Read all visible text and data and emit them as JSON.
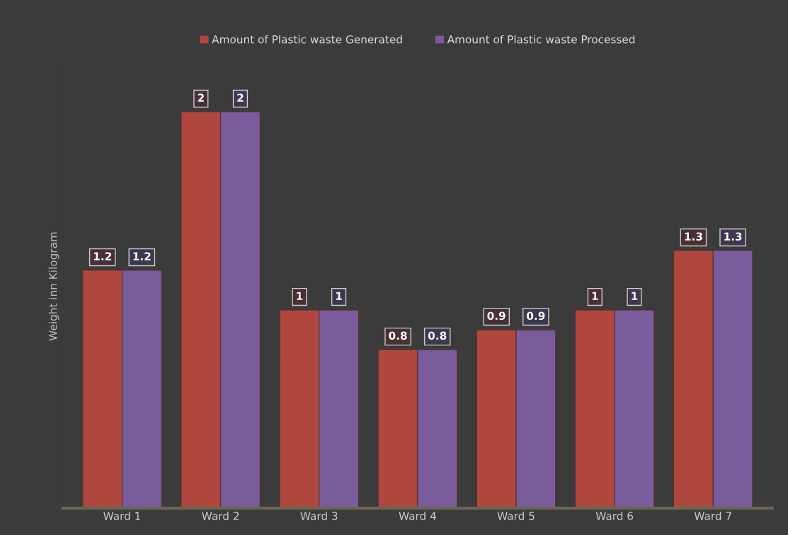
{
  "chart_data": {
    "type": "bar",
    "ylabel": "Weight inn Kilogram",
    "categories": [
      "Ward 1",
      "Ward 2",
      "Ward 3",
      "Ward 4",
      "Ward 5",
      "Ward 6",
      "Ward 7"
    ],
    "series": [
      {
        "name": "Amount of Plastic waste Generated",
        "color": "#b0473f",
        "values": [
          1.2,
          2,
          1,
          0.8,
          0.9,
          1,
          1.3
        ]
      },
      {
        "name": "Amount of Plastic waste Processed",
        "color": "#7a5c9c",
        "values": [
          1.2,
          2,
          1,
          0.8,
          0.9,
          1,
          1.3
        ]
      }
    ],
    "data_labels": true,
    "legend": "top",
    "grid": false
  }
}
